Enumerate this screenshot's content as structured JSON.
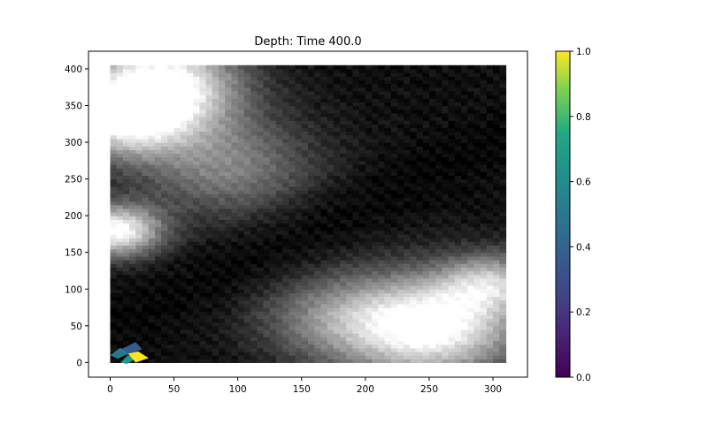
{
  "chart_data": {
    "type": "heatmap",
    "title": "Depth: Time 400.0",
    "xlabel": "",
    "ylabel": "",
    "xlim": [
      -17,
      327
    ],
    "ylim": [
      -20,
      424
    ],
    "x_ticks": [
      0,
      50,
      100,
      150,
      200,
      250,
      300
    ],
    "y_ticks": [
      0,
      50,
      100,
      150,
      200,
      250,
      300,
      350,
      400
    ],
    "grid": false,
    "background_field": {
      "colormap": "gray",
      "extent_x": [
        0,
        310
      ],
      "extent_y": [
        0,
        405
      ],
      "description_values": "depth field rendered in grayscale (light = high, dark = low)",
      "bright_regions": [
        {
          "x": 40,
          "y": 380,
          "weight": 1.0,
          "spread": 60
        },
        {
          "x": 5,
          "y": 180,
          "weight": 0.95,
          "spread": 35
        },
        {
          "x": 10,
          "y": 330,
          "weight": 0.75,
          "spread": 50
        },
        {
          "x": 250,
          "y": 50,
          "weight": 1.0,
          "spread": 70
        },
        {
          "x": 300,
          "y": 110,
          "weight": 0.55,
          "spread": 40
        },
        {
          "x": 170,
          "y": 60,
          "weight": 0.35,
          "spread": 60
        },
        {
          "x": 90,
          "y": 270,
          "weight": 0.45,
          "spread": 70
        }
      ]
    },
    "overlay_patches": [
      {
        "label": "flood-cell",
        "points": [
          [
            5,
            15
          ],
          [
            20,
            28
          ],
          [
            25,
            18
          ],
          [
            12,
            10
          ]
        ],
        "value": 0.35
      },
      {
        "label": "flood-cell",
        "points": [
          [
            0,
            10
          ],
          [
            8,
            20
          ],
          [
            14,
            12
          ],
          [
            6,
            5
          ]
        ],
        "value": 0.5
      },
      {
        "label": "flood-cell",
        "points": [
          [
            8,
            0
          ],
          [
            14,
            10
          ],
          [
            20,
            5
          ],
          [
            13,
            -2
          ]
        ],
        "value": 0.65
      },
      {
        "label": "flood-cell",
        "points": [
          [
            14,
            12
          ],
          [
            20,
            0
          ],
          [
            30,
            6
          ],
          [
            22,
            15
          ]
        ],
        "value": 1.0
      }
    ],
    "colorbar": {
      "colormap": "viridis",
      "min": 0.0,
      "max": 1.0,
      "ticks": [
        "0.0",
        "0.2",
        "0.4",
        "0.6",
        "0.8",
        "1.0"
      ]
    }
  }
}
